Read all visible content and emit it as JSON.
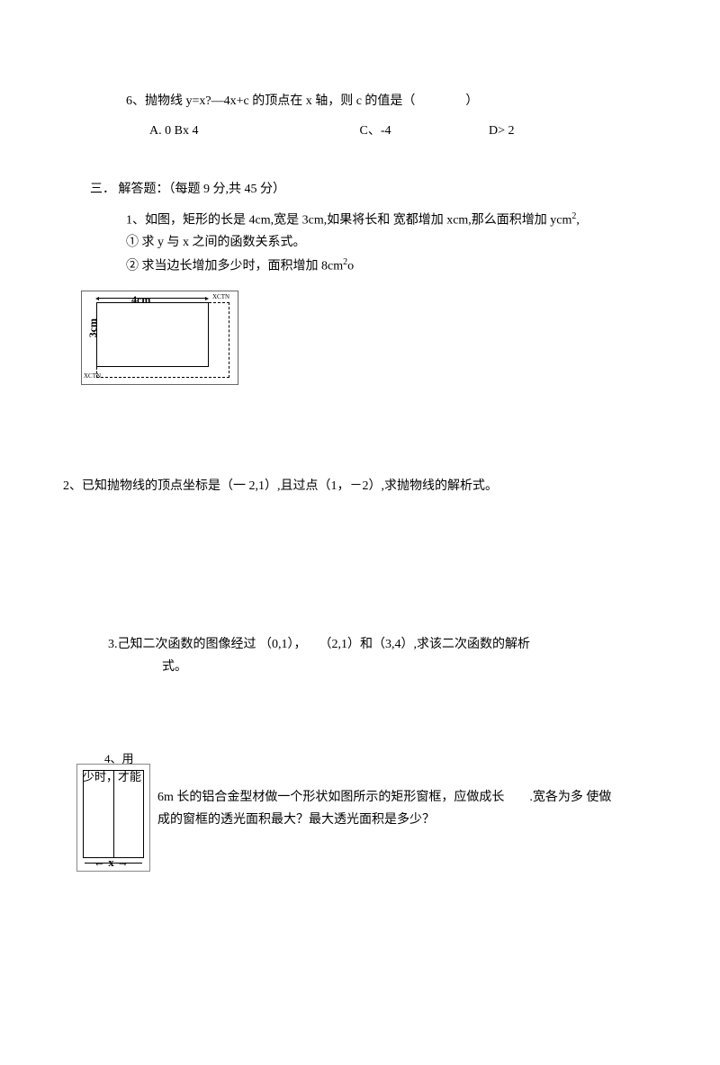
{
  "q6": {
    "text": "6、抛物线 y=x?—4x+c 的顶点在  x 轴，则  c 的值是（　　　　）",
    "optA": "A. 0 Bx 4",
    "optC": "C、-4",
    "optD": "D> 2"
  },
  "section3": {
    "title": "三．  解答题：（每题  9 分,共  45 分）",
    "q1_line1": "1、如图，矩形的长是  4cm,宽是 3cm,如果将长和  宽都增加 xcm,那么面积增加 ycm",
    "q1_sup": "2",
    "q1_comma": ",",
    "q1_sub1": "① 求 y 与 x 之间的函数关系式。",
    "q1_sub2": "② 求当边长增加多少时，面积增加  8cm",
    "q1_sub2_end": "o"
  },
  "diagram1": {
    "label_top": "4cm",
    "label_left": "3cm",
    "small1": "XCTN",
    "small2": "XCTN"
  },
  "q2": {
    "text": "2、已知抛物线的顶点坐标是（一  2,1）,且过点（1，－2）,求抛物线的解析式。"
  },
  "q3": {
    "line1": "3.己知二次函数的图像经过 （0,1），　　（2,1）和（3,4）,求该二次函数的解析",
    "line2": "式。"
  },
  "q4": {
    "overlay1": "4、用",
    "overlay2": "少时，才能",
    "text1": "6m 长的铝合金型材做一个形状如图所示的矩形窗框，应做成长　　.宽各为多  使做",
    "text2": "成的窗框的透光面积最大？最大透光面积是多少？",
    "xlabel": "x"
  }
}
